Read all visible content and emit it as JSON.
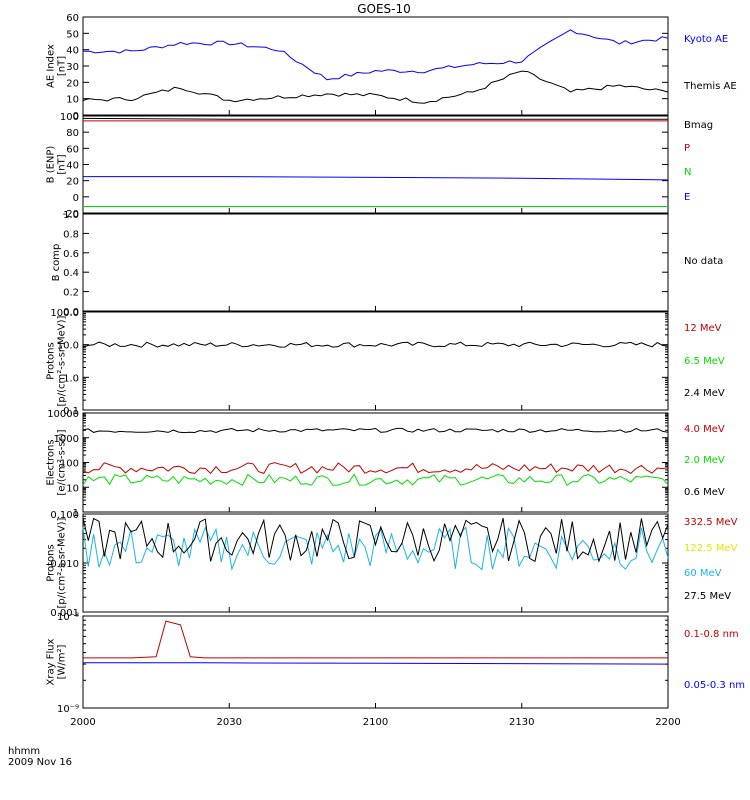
{
  "title": "GOES-10",
  "footer": {
    "line1": "hhmm",
    "line2": "2009 Nov 16"
  },
  "time_axis": {
    "min": "2000",
    "max": "2200",
    "ticks": [
      "2000",
      "2030",
      "2100",
      "2130",
      "2200"
    ]
  },
  "colors": {
    "black": "#000000",
    "blue": "#0000ff",
    "red": "#c00000",
    "green": "#00dd00",
    "yellow": "#e6e600",
    "cyan": "#1ab4e6"
  },
  "chart_data": [
    {
      "id": "ae",
      "type": "line",
      "ylabel_lines": [
        "AE Index",
        "[nT]"
      ],
      "ylim": [
        0,
        60
      ],
      "ytick_labels": [
        "0",
        "10",
        "20",
        "30",
        "40",
        "50",
        "60"
      ],
      "x": [
        "2000",
        "2010",
        "2020",
        "2030",
        "2040",
        "2050",
        "2100",
        "2110",
        "2120",
        "2130",
        "2140",
        "2150",
        "2200"
      ],
      "series": [
        {
          "name": "Kyoto AE",
          "color": "#0000ff",
          "values": [
            39,
            39,
            44,
            44,
            40,
            22,
            27,
            27,
            31,
            33,
            52,
            44,
            47
          ]
        },
        {
          "name": "Themis AE",
          "color": "#000000",
          "values": [
            9,
            10,
            17,
            9,
            11,
            13,
            12,
            8,
            14,
            27,
            14,
            18,
            14
          ]
        }
      ]
    },
    {
      "id": "bfield",
      "type": "line",
      "ylabel_lines": [
        "B (ENP)",
        "[nT]"
      ],
      "ylim": [
        -20,
        100
      ],
      "ytick_labels": [
        "-20",
        "0",
        "20",
        "40",
        "60",
        "80",
        "100"
      ],
      "x": [
        "2000",
        "2030",
        "2100",
        "2130",
        "2200"
      ],
      "series": [
        {
          "name": "Bmag",
          "color": "#000000",
          "values": [
            97,
            96,
            96,
            96,
            96
          ]
        },
        {
          "name": "P",
          "color": "#c00000",
          "values": [
            94,
            94,
            94,
            94,
            94
          ]
        },
        {
          "name": "N",
          "color": "#00dd00",
          "values": [
            -12,
            -12,
            -12,
            -12,
            -12
          ]
        },
        {
          "name": "E",
          "color": "#0000ff",
          "values": [
            25,
            25,
            24,
            23,
            21
          ]
        }
      ]
    },
    {
      "id": "bcomp",
      "type": "line",
      "ylabel_lines": [
        "B comp"
      ],
      "ylim": [
        0,
        1
      ],
      "ytick_labels": [
        "0.0",
        "0.2",
        "0.4",
        "0.6",
        "0.8",
        "1.0"
      ],
      "series": [],
      "legend": [
        "No data"
      ]
    },
    {
      "id": "protons_hi",
      "type": "line",
      "ylabel_lines": [
        "Protons",
        "[p/(cm²-s-sr-MeV)]"
      ],
      "scale": "log",
      "ylim": [
        0.1,
        100
      ],
      "ytick_labels": [
        "0.1",
        "1.0",
        "10.0",
        "100.0"
      ],
      "series": [
        {
          "name": "12 MeV",
          "color": "#c00000",
          "values": []
        },
        {
          "name": "6.5 MeV",
          "color": "#00dd00",
          "values": []
        },
        {
          "name": "2.4 MeV",
          "color": "#000000",
          "values": [
            10,
            10,
            10,
            10,
            10
          ]
        }
      ]
    },
    {
      "id": "electrons",
      "type": "line",
      "ylabel_lines": [
        "Electrons",
        "[e/(cm²-s-sr)]"
      ],
      "scale": "log",
      "ylim": [
        1,
        10000
      ],
      "ytick_labels": [
        "1",
        "10",
        "100",
        "1000",
        "10000"
      ],
      "series": [
        {
          "name": "4.0 MeV",
          "color": "#c00000",
          "values": [
            60,
            60,
            60,
            60,
            60
          ]
        },
        {
          "name": "2.0 MeV",
          "color": "#00dd00",
          "values": [
            20,
            20,
            20,
            20,
            20
          ]
        },
        {
          "name": "0.6 MeV",
          "color": "#000000",
          "values": [
            1900,
            2000,
            2000,
            2000,
            1900
          ]
        }
      ]
    },
    {
      "id": "protons_lo",
      "type": "line",
      "ylabel_lines": [
        "Protons",
        "[p/(cm²-s-sr-MeV)]"
      ],
      "scale": "log",
      "ylim": [
        0.001,
        0.1
      ],
      "ytick_labels": [
        "0.001",
        "0.010",
        "0.100"
      ],
      "series": [
        {
          "name": "332.5 MeV",
          "color": "#c00000",
          "values": []
        },
        {
          "name": "122.5 MeV",
          "color": "#e6e600",
          "values": []
        },
        {
          "name": "60 MeV",
          "color": "#1ab4e6",
          "values": [
            0.02,
            0.02,
            0.02,
            0.02,
            0.02
          ]
        },
        {
          "name": "27.5 MeV",
          "color": "#000000",
          "values": [
            0.03,
            0.03,
            0.03,
            0.03,
            0.03
          ]
        }
      ]
    },
    {
      "id": "xray",
      "type": "line",
      "ylabel_lines": [
        "Xray Flux",
        "[W/m²]"
      ],
      "scale": "log",
      "ylim": [
        1e-09,
        1e-08
      ],
      "ytick_labels": [
        "10⁻⁹",
        "10⁻⁸"
      ],
      "x": [
        "2000",
        "2010",
        "2015",
        "2017",
        "2020",
        "2022",
        "2025",
        "2200"
      ],
      "series": [
        {
          "name": "0.1-0.8 nm",
          "color": "#c00000",
          "values": [
            3.5e-09,
            3.5e-09,
            3.6e-09,
            8.8e-09,
            8e-09,
            3.6e-09,
            3.5e-09,
            3.5e-09
          ]
        },
        {
          "name": "0.05-0.3 nm",
          "color": "#0000ff",
          "values": [
            3.1e-09,
            3.1e-09,
            3.1e-09,
            3.1e-09,
            3.1e-09,
            3.1e-09,
            3.1e-09,
            3e-09
          ]
        }
      ]
    }
  ]
}
